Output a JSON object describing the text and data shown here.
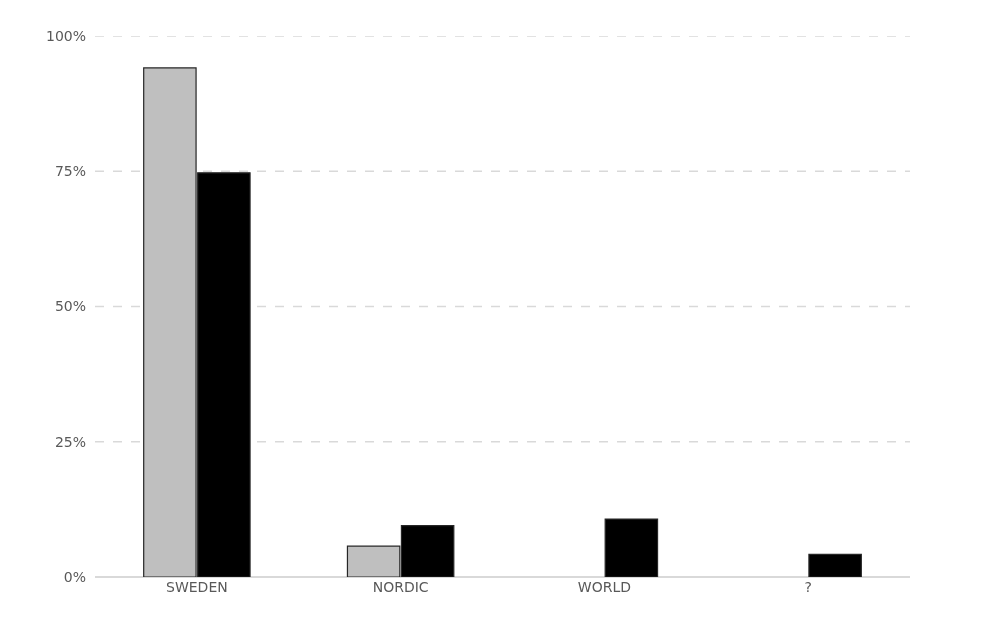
{
  "chart_data": {
    "type": "bar",
    "categories": [
      "SWEDEN",
      "NORDIC",
      "WORLD",
      "?"
    ],
    "series": [
      {
        "color": "#bfbfbf",
        "values": [
          94.1,
          5.7,
          null,
          null
        ]
      },
      {
        "color": "#000000",
        "values": [
          74.7,
          9.5,
          10.7,
          4.2
        ]
      }
    ],
    "ylim": [
      0,
      100
    ],
    "yticks": [
      {
        "value": 0,
        "label": "0%"
      },
      {
        "value": 25,
        "label": "25%"
      },
      {
        "value": 50,
        "label": "50%"
      },
      {
        "value": 75,
        "label": "75%"
      },
      {
        "value": 100,
        "label": "100%"
      }
    ],
    "grid": "y"
  }
}
